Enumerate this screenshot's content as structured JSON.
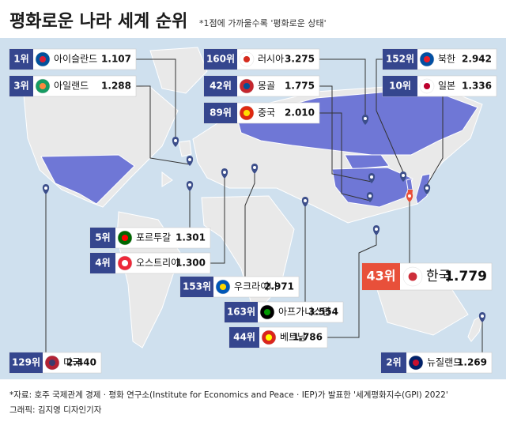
{
  "header": {
    "title": "평화로운 나라 세계 순위",
    "note": "*1점에 가까울수록 '평화로운 상태'"
  },
  "labels": [
    {
      "rank": "1위",
      "country": "아이슬란드",
      "score": "1.107"
    },
    {
      "rank": "3위",
      "country": "아일랜드",
      "score": "1.288"
    },
    {
      "rank": "160위",
      "country": "러시아",
      "score": "3.275"
    },
    {
      "rank": "42위",
      "country": "몽골",
      "score": "1.775"
    },
    {
      "rank": "89위",
      "country": "중국",
      "score": "2.010"
    },
    {
      "rank": "152위",
      "country": "북한",
      "score": "2.942"
    },
    {
      "rank": "10위",
      "country": "일본",
      "score": "1.336"
    },
    {
      "rank": "5위",
      "country": "포르투갈",
      "score": "1.301"
    },
    {
      "rank": "4위",
      "country": "오스트리아",
      "score": "1.300"
    },
    {
      "rank": "153위",
      "country": "우크라이나",
      "score": "2.971"
    },
    {
      "rank": "163위",
      "country": "아프가니스탄",
      "score": "3.554"
    },
    {
      "rank": "44위",
      "country": "베트남",
      "score": "1.786"
    },
    {
      "rank": "43위",
      "country": "한국",
      "score": "1.779"
    },
    {
      "rank": "129위",
      "country": "미국",
      "score": "2.440"
    },
    {
      "rank": "2위",
      "country": "뉴질랜드",
      "score": "1.269"
    }
  ],
  "footer": {
    "source": "*자료: 호주 국제관계 경제 · 평화 연구소(Institute for Economics and Peace · IEP)가 발표한 '세계평화지수(GPI) 2022'",
    "credit": "그래픽: 김지영 디자인기자"
  }
}
